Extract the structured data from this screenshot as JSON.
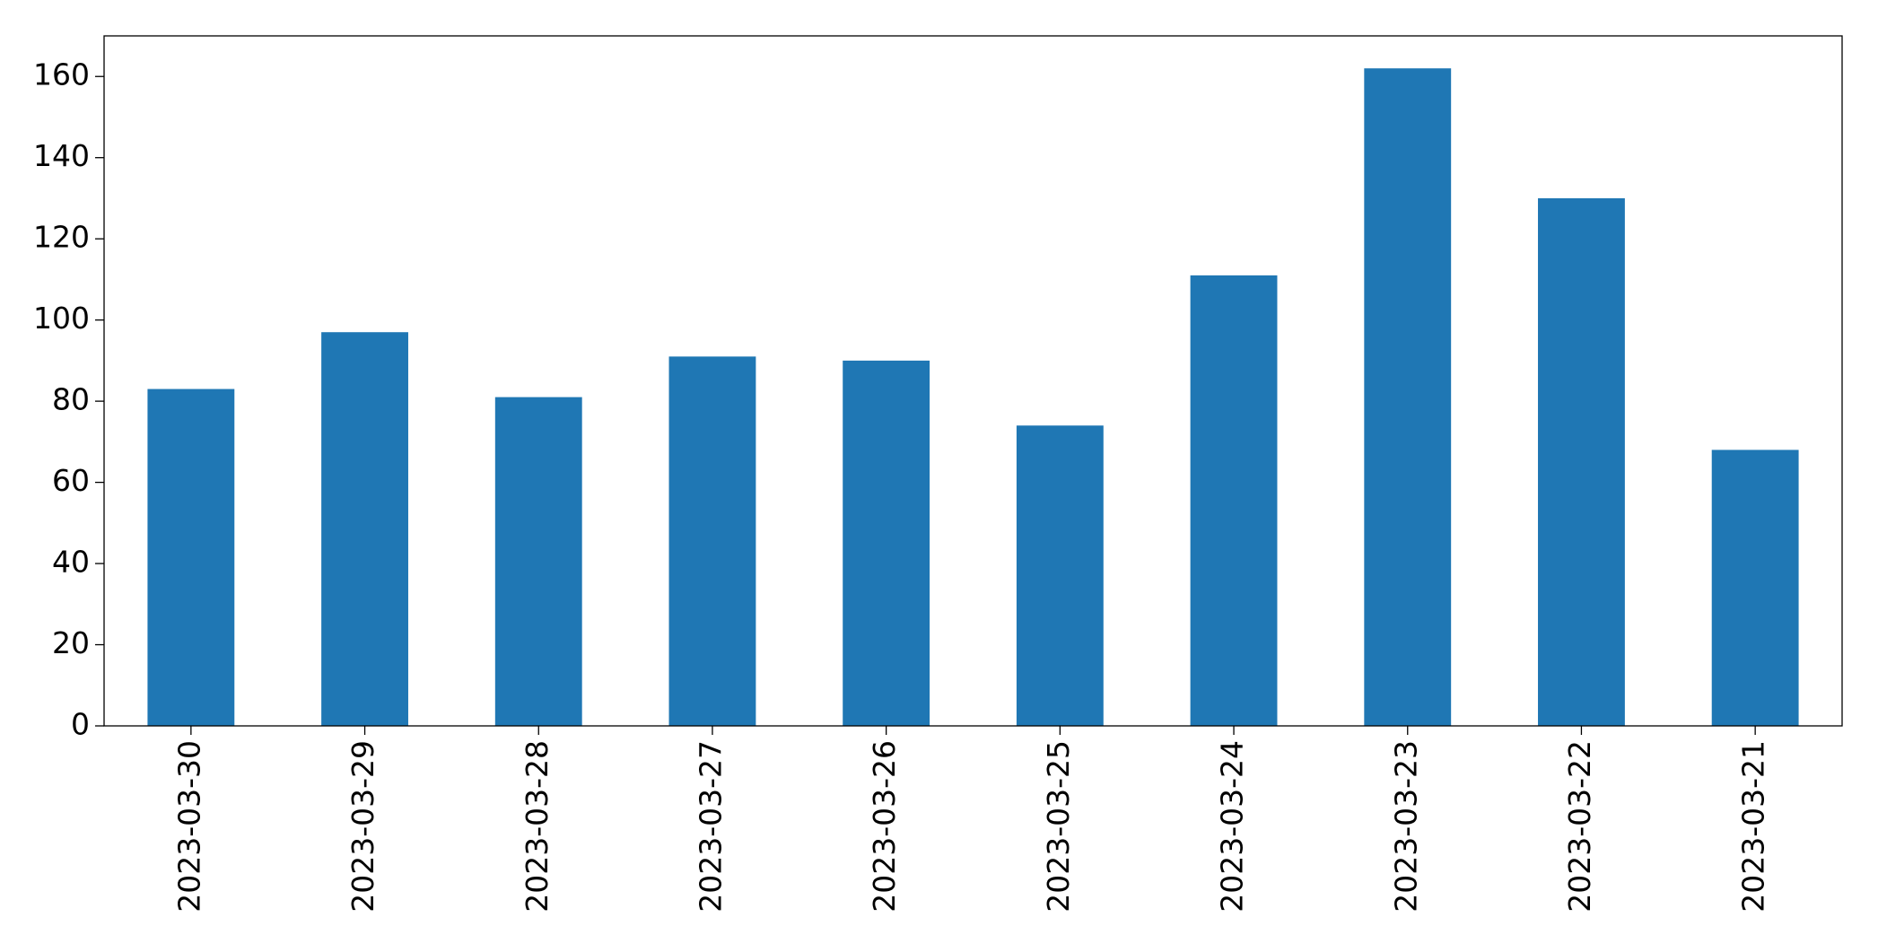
{
  "chart_data": {
    "type": "bar",
    "categories": [
      "2023-03-30",
      "2023-03-29",
      "2023-03-28",
      "2023-03-27",
      "2023-03-26",
      "2023-03-25",
      "2023-03-24",
      "2023-03-23",
      "2023-03-22",
      "2023-03-21"
    ],
    "values": [
      83,
      97,
      81,
      91,
      90,
      74,
      111,
      162,
      130,
      68
    ],
    "color": "#1f77b4",
    "ylim": [
      0,
      170
    ],
    "yticks": [
      0,
      20,
      40,
      60,
      80,
      100,
      120,
      140,
      160
    ],
    "grid": false
  }
}
